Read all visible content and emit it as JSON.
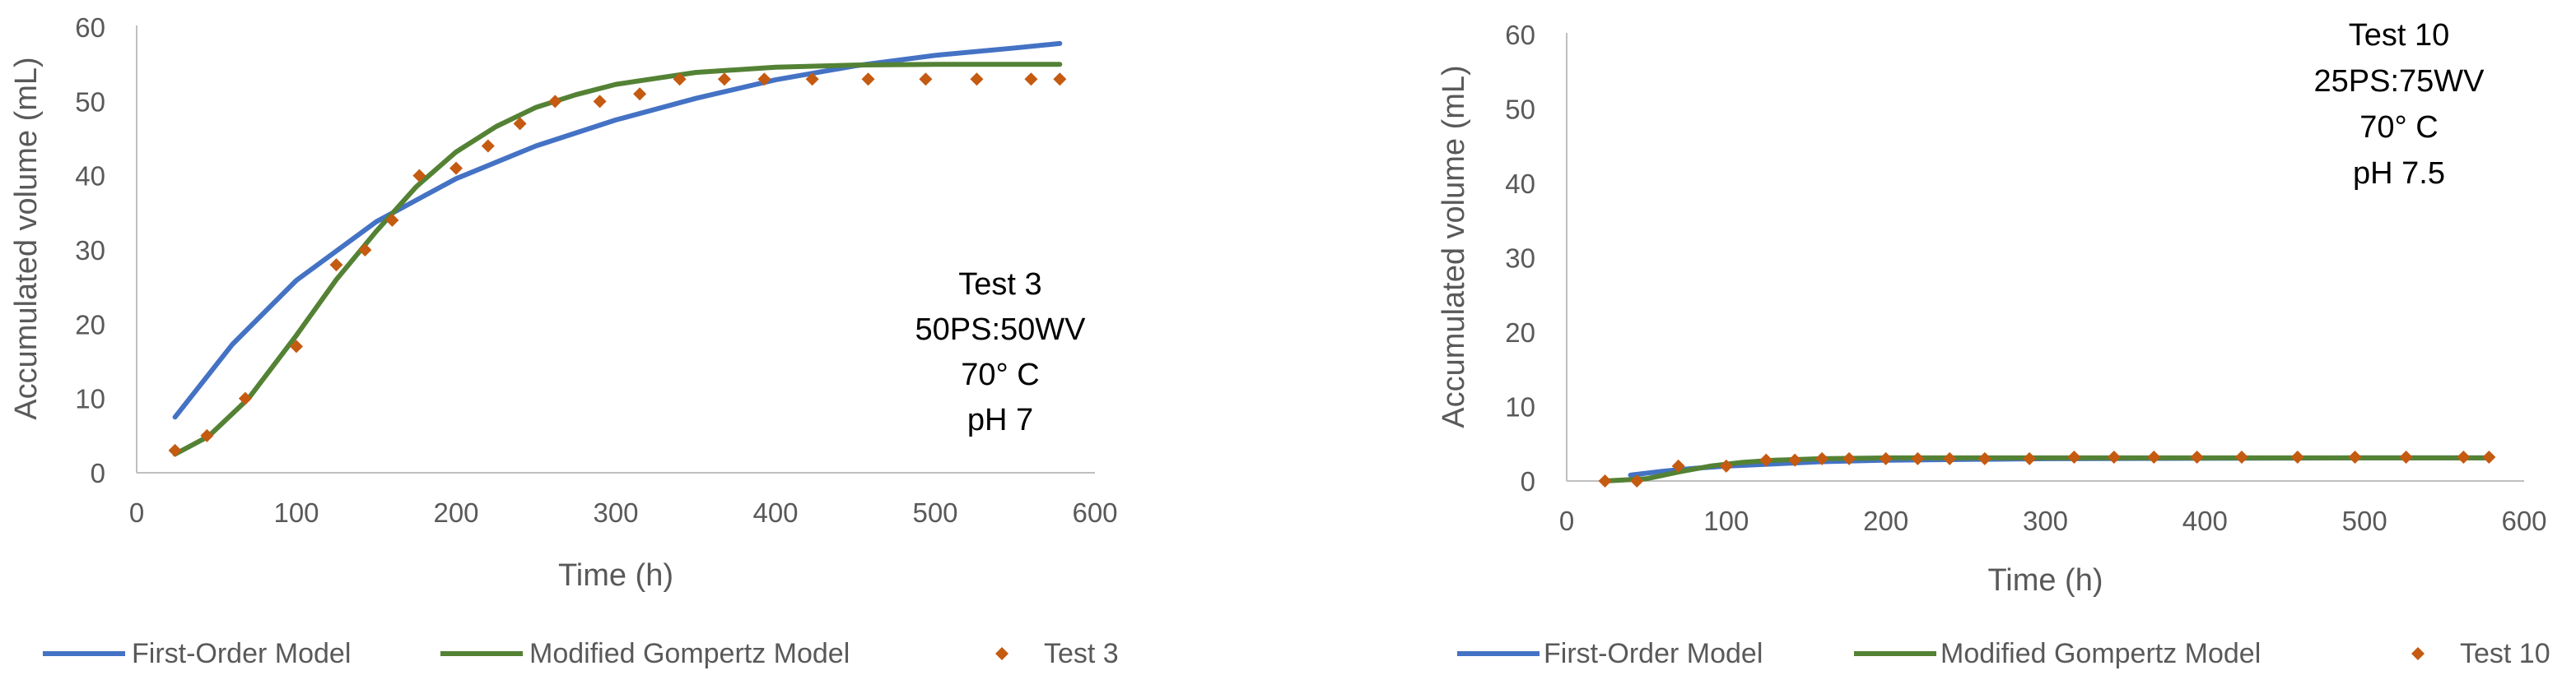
{
  "colors": {
    "first_order": "#4472C4",
    "gompertz": "#548235",
    "test": "#C55A11",
    "axis": "#BFBFBF",
    "text": "#595959"
  },
  "chart_data": [
    {
      "type": "line",
      "xlabel": "Time (h)",
      "ylabel": "Accumulated volume (mL)",
      "xlim": [
        0,
        600
      ],
      "ylim": [
        0,
        60
      ],
      "xticks": [
        "0",
        "100",
        "200",
        "300",
        "400",
        "500",
        "600"
      ],
      "yticks": [
        "0",
        "10",
        "20",
        "30",
        "40",
        "50",
        "60"
      ],
      "grid": false,
      "legend_position": "bottom",
      "annotation": [
        "Test 3",
        "50PS:50WV",
        "70° C",
        "pH 7"
      ],
      "legend": [
        "First-Order Model",
        "Modified Gompertz Model",
        "Test 3"
      ],
      "series": [
        {
          "name": "First-Order Model",
          "kind": "line",
          "x": [
            24,
            60,
            100,
            150,
            200,
            250,
            300,
            350,
            400,
            450,
            500,
            550,
            578
          ],
          "y": [
            7.5,
            17.3,
            25.9,
            33.8,
            39.6,
            44.0,
            47.5,
            50.4,
            52.9,
            54.8,
            56.2,
            57.2,
            57.8
          ]
        },
        {
          "name": "Modified Gompertz Model",
          "kind": "line",
          "x": [
            24,
            45,
            70,
            100,
            125,
            150,
            175,
            200,
            225,
            250,
            275,
            300,
            350,
            400,
            450,
            500,
            578
          ],
          "y": [
            2.5,
            4.9,
            10.0,
            18.5,
            26.0,
            32.5,
            38.5,
            43.2,
            46.6,
            49.2,
            50.9,
            52.3,
            53.9,
            54.6,
            54.9,
            55.0,
            55.0
          ]
        },
        {
          "name": "Test 3",
          "kind": "scatter",
          "x": [
            24,
            44,
            68,
            100,
            125,
            143,
            160,
            177,
            200,
            220,
            240,
            262,
            290,
            315,
            340,
            368,
            393,
            423,
            458,
            494,
            526,
            560,
            578
          ],
          "y": [
            3,
            5,
            10,
            17,
            28,
            30,
            34,
            40,
            41,
            44,
            47,
            50,
            50,
            51,
            53,
            53,
            53,
            53,
            53,
            53,
            53,
            53,
            53
          ]
        }
      ]
    },
    {
      "type": "line",
      "xlabel": "Time (h)",
      "ylabel": "Accumulated volume (mL)",
      "xlim": [
        0,
        600
      ],
      "ylim": [
        0,
        60
      ],
      "xticks": [
        "0",
        "100",
        "200",
        "300",
        "400",
        "500",
        "600"
      ],
      "yticks": [
        "0",
        "10",
        "20",
        "30",
        "40",
        "50",
        "60"
      ],
      "grid": false,
      "legend_position": "bottom",
      "annotation": [
        "Test 10",
        "25PS:75WV",
        "70° C",
        "pH 7.5"
      ],
      "legend": [
        "First-Order Model",
        "Modified Gompertz Model",
        "Test 10"
      ],
      "series": [
        {
          "name": "First-Order Model",
          "kind": "line",
          "x": [
            40,
            60,
            80,
            100,
            130,
            160,
            200,
            250,
            300,
            400,
            500,
            578
          ],
          "y": [
            0.8,
            1.3,
            1.7,
            2.0,
            2.3,
            2.6,
            2.8,
            2.9,
            3.0,
            3.05,
            3.1,
            3.1
          ]
        },
        {
          "name": "Modified Gompertz Model",
          "kind": "line",
          "x": [
            24,
            50,
            70,
            90,
            110,
            130,
            160,
            200,
            250,
            300,
            400,
            578
          ],
          "y": [
            0.0,
            0.3,
            1.2,
            2.0,
            2.5,
            2.8,
            3.0,
            3.1,
            3.1,
            3.1,
            3.1,
            3.1
          ]
        },
        {
          "name": "Test 10",
          "kind": "scatter",
          "x": [
            24,
            44,
            70,
            100,
            125,
            143,
            160,
            177,
            200,
            220,
            240,
            262,
            290,
            318,
            343,
            368,
            395,
            423,
            458,
            494,
            526,
            562,
            578
          ],
          "y": [
            0,
            0,
            2,
            2,
            2.8,
            2.8,
            3,
            3,
            3,
            3,
            3,
            3,
            3,
            3.2,
            3.2,
            3.2,
            3.2,
            3.2,
            3.2,
            3.2,
            3.2,
            3.2,
            3.2
          ]
        }
      ]
    }
  ]
}
